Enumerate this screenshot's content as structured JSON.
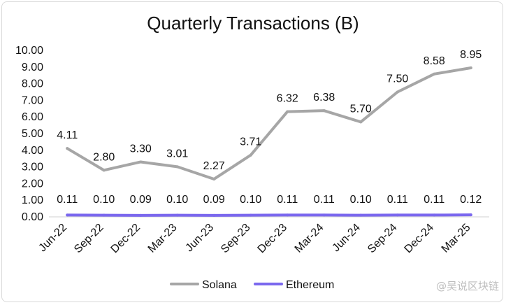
{
  "chart_data": {
    "type": "line",
    "title": "Quarterly Transactions (B)",
    "categories": [
      "Jun-22",
      "Sep-22",
      "Dec-22",
      "Mar-23",
      "Jun-23",
      "Sep-23",
      "Dec-23",
      "Mar-24",
      "Jun-24",
      "Sep-24",
      "Dec-24",
      "Mar-25"
    ],
    "ylim": [
      0,
      10
    ],
    "yticks": [
      "0.00",
      "1.00",
      "2.00",
      "3.00",
      "4.00",
      "5.00",
      "6.00",
      "7.00",
      "8.00",
      "9.00",
      "10.00"
    ],
    "grid": false,
    "legend_position": "bottom",
    "series": [
      {
        "name": "Solana",
        "color": "#a6a6a6",
        "values": [
          4.11,
          2.8,
          3.3,
          3.01,
          2.27,
          3.71,
          6.32,
          6.38,
          5.7,
          7.5,
          8.58,
          8.95
        ],
        "labels": [
          "4.11",
          "2.80",
          "3.30",
          "3.01",
          "2.27",
          "3.71",
          "6.32",
          "6.38",
          "5.70",
          "7.50",
          "8.58",
          "8.95"
        ]
      },
      {
        "name": "Ethereum",
        "color": "#7b68ee",
        "values": [
          0.11,
          0.1,
          0.09,
          0.1,
          0.09,
          0.1,
          0.11,
          0.11,
          0.1,
          0.11,
          0.11,
          0.12
        ],
        "labels": [
          "0.11",
          "0.10",
          "0.09",
          "0.10",
          "0.09",
          "0.10",
          "0.11",
          "0.11",
          "0.10",
          "0.11",
          "0.11",
          "0.12"
        ]
      }
    ]
  },
  "watermark": "@吴说区块链"
}
